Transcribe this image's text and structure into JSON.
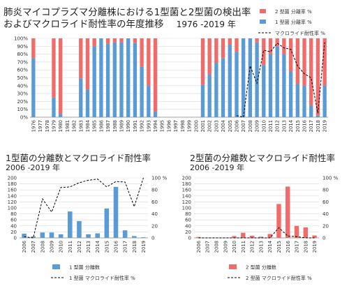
{
  "chart_data": [
    {
      "type": "bar",
      "title_line1": "肺炎マイコプラズマ分離株における1型菌と2型菌の検出率",
      "title_line2": "およびマクロライド耐性率の年度推移",
      "title_years": "1976 -2019 年",
      "categories": [
        "1976",
        "1977",
        "1978",
        "1979",
        "1980",
        "1981",
        "1982",
        "1983",
        "1984",
        "1985",
        "1986",
        "1987",
        "1988",
        "1989",
        "1990",
        "1991",
        "1992",
        "1993",
        "1994",
        "1995",
        "1996",
        "1997",
        "1998",
        "1999",
        "2000",
        "2001",
        "2002",
        "2003",
        "2004",
        "2005",
        "2006",
        "2007",
        "2008",
        "2009",
        "2010",
        "2011",
        "2012",
        "2013",
        "2014",
        "2015",
        "2016",
        "2017",
        "2018",
        "2019"
      ],
      "series": [
        {
          "name": "2 型菌 分離率 %",
          "color": "#f26b6b",
          "values": [
            25,
            0,
            0,
            75,
            96,
            0,
            0,
            51,
            65,
            10,
            0,
            7,
            5,
            5,
            0,
            6,
            36,
            60,
            93,
            0,
            0,
            0,
            0,
            0,
            0,
            59,
            46,
            31,
            25,
            8,
            17,
            0,
            0,
            5,
            34,
            20,
            10,
            20,
            42,
            58,
            60,
            85,
            98,
            60
          ]
        },
        {
          "name": "1 型菌 分離率 %",
          "color": "#5b9bd5",
          "values": [
            75,
            0,
            0,
            25,
            4,
            0,
            0,
            49,
            35,
            90,
            100,
            93,
            95,
            95,
            100,
            94,
            64,
            40,
            7,
            0,
            0,
            0,
            0,
            0,
            0,
            41,
            54,
            69,
            75,
            92,
            83,
            100,
            100,
            95,
            66,
            80,
            90,
            80,
            58,
            42,
            40,
            15,
            2,
            40
          ]
        },
        {
          "name": "マクロライド耐性率 %",
          "color": "#000000",
          "values": [
            null,
            null,
            null,
            null,
            null,
            null,
            null,
            null,
            null,
            null,
            null,
            null,
            null,
            null,
            null,
            null,
            null,
            null,
            null,
            null,
            null,
            null,
            null,
            null,
            null,
            null,
            null,
            null,
            null,
            null,
            2,
            0,
            65,
            43,
            85,
            83,
            94,
            88,
            86,
            65,
            55,
            50,
            5,
            95
          ]
        }
      ],
      "ylim": [
        0,
        100
      ],
      "yticks": [
        "0%",
        "10%",
        "20%",
        "30%",
        "40%",
        "50%",
        "60%",
        "70%",
        "80%",
        "90%",
        "100%"
      ],
      "legend_position": "top-right"
    },
    {
      "type": "bar",
      "title_line1": "1型菌の分離数とマクロライド耐性率",
      "title_line2": "2006 -2019 年",
      "categories": [
        "2006",
        "2007",
        "2008",
        "2009",
        "2010",
        "2011",
        "2012",
        "2013",
        "2014",
        "2015",
        "2016",
        "2017",
        "2018",
        "2019"
      ],
      "series": [
        {
          "name": "1 型菌 分離数",
          "color": "#5b9bd5",
          "values": [
            14,
            5,
            18,
            18,
            12,
            88,
            56,
            12,
            15,
            98,
            170,
            25,
            6,
            2
          ]
        },
        {
          "name": "1 型菌 マクロライド耐性率 %",
          "color": "#000000",
          "values": [
            2,
            0,
            65,
            43,
            84,
            85,
            92,
            96,
            98,
            85,
            94,
            93,
            52,
            100
          ]
        }
      ],
      "ylim_left": [
        0,
        200
      ],
      "ylim_right": [
        0,
        100
      ],
      "yticks_left": [
        "0",
        "20",
        "40",
        "60",
        "80",
        "100",
        "120",
        "140",
        "160",
        "180",
        "200"
      ],
      "yticks_right": [
        "0",
        "20",
        "40",
        "60",
        "80",
        "100 %"
      ],
      "legend_position": "bottom"
    },
    {
      "type": "bar",
      "title_line1": "2型菌の分離数とマクロライド耐性率",
      "title_line2": "2006 -2019 年",
      "categories": [
        "2006",
        "2007",
        "2008",
        "2009",
        "2010",
        "2011",
        "2012",
        "2013",
        "2014",
        "2015",
        "2016",
        "2017",
        "2018",
        "2019"
      ],
      "series": [
        {
          "name": "2 型菌 分離数",
          "color": "#f26b6b",
          "values": [
            3,
            0,
            0,
            1,
            6,
            17,
            7,
            4,
            13,
            113,
            171,
            40,
            35,
            8
          ]
        },
        {
          "name": "2 型菌 マクロライド耐性率 %",
          "color": "#000000",
          "values": [
            0,
            0,
            0,
            0,
            0,
            0,
            0,
            0,
            0,
            17,
            3,
            2,
            0,
            0
          ]
        }
      ],
      "ylim_left": [
        0,
        200
      ],
      "ylim_right": [
        0,
        100
      ],
      "yticks_left": [
        "0",
        "20",
        "40",
        "60",
        "80",
        "100",
        "120",
        "140",
        "160",
        "180",
        "200"
      ],
      "yticks_right": [
        "0",
        "20",
        "40",
        "60",
        "80",
        "100 %"
      ],
      "legend_position": "bottom"
    }
  ]
}
